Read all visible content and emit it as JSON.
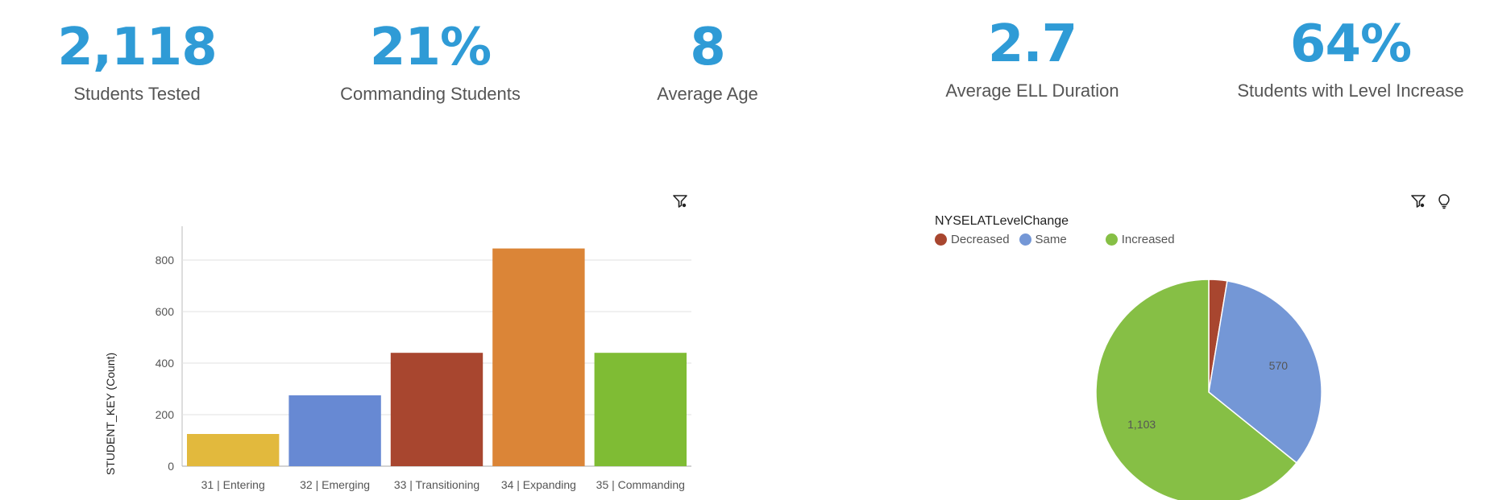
{
  "kpis": [
    {
      "value": "2,118",
      "label": "Students Tested"
    },
    {
      "value": "21%",
      "label": "Commanding Students"
    },
    {
      "value": "8",
      "label": "Average Age"
    },
    {
      "value": "2.7",
      "label": "Average ELL Duration"
    },
    {
      "value": "64%",
      "label": "Students with Level Increase"
    }
  ],
  "icons": {
    "filter": "filter-icon",
    "insight": "lightbulb-icon"
  },
  "colors": {
    "kpi": "#2f9bd6"
  },
  "chart_data": [
    {
      "type": "bar",
      "categories": [
        "31 | Entering",
        "32 | Emerging",
        "33 | Transitioning",
        "34 | Expanding",
        "35 | Commanding"
      ],
      "values": [
        125,
        275,
        440,
        845,
        440
      ],
      "colors": [
        "#e2b93d",
        "#6789d3",
        "#a8462f",
        "#db8537",
        "#7fbc34"
      ],
      "ylabel": "STUDENT_KEY (Count)",
      "xlabel": "",
      "ylim": [
        0,
        900
      ],
      "yticks": [
        0,
        200,
        400,
        600,
        800
      ],
      "grid": true
    },
    {
      "type": "pie",
      "legend_title": "NYSELATLevelChange",
      "legend_placement": "top-left",
      "slices": [
        {
          "name": "Decreased",
          "value": 45,
          "color": "#a8462f",
          "label": ""
        },
        {
          "name": "Same",
          "value": 570,
          "color": "#7497d6",
          "label": "570"
        },
        {
          "name": "Increased",
          "value": 1103,
          "color": "#86bf45",
          "label": "1,103"
        }
      ]
    }
  ]
}
